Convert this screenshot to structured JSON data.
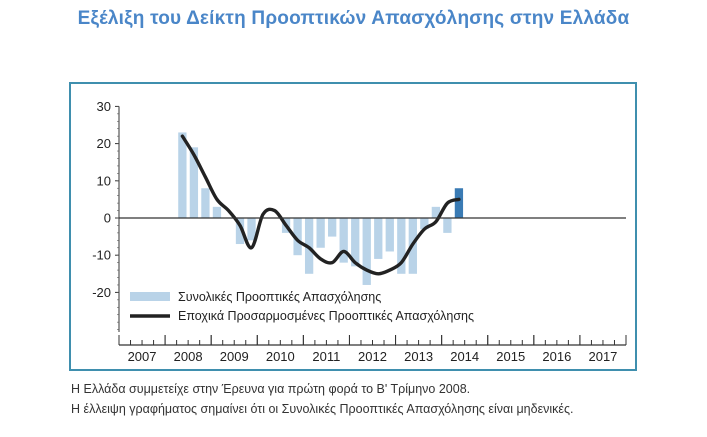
{
  "title": "Εξέλιξη του Δείκτη Προοπτικών Απασχόλησης στην Ελλάδα",
  "footnotes": [
    "Η Ελλάδα συμμετείχε στην Έρευνα για πρώτη φορά το Β' Τρίμηνο 2008.",
    "Η έλλειψη γραφήματος σημαίνει ότι οι Συνολικές Προοπτικές Απασχόλησης είναι μηδενικές."
  ],
  "colors": {
    "title": "#4a86c8",
    "frame": "#3f8fae",
    "bar": "#b9d3e8",
    "bar_highlight": "#3a7bb4",
    "line": "#222222"
  },
  "chart_data": {
    "type": "bar",
    "title": "",
    "xlabel": "",
    "ylabel": "",
    "ylim": [
      -30,
      30
    ],
    "yticks": [
      30,
      20,
      10,
      0,
      -10,
      -20
    ],
    "years": [
      "2007",
      "2008",
      "2009",
      "2010",
      "2011",
      "2012",
      "2013",
      "2014",
      "2015",
      "2016",
      "2017"
    ],
    "legend": {
      "placement": "lower-left",
      "entries": [
        "Συνολικές Προοπτικές Απασχόλησης",
        "Εποχικά Προσαρμοσμένες Προοπτικές Απασχόλησης"
      ]
    },
    "series": [
      {
        "name": "Συνολικές Προοπτικές Απασχόλησης",
        "type": "bar",
        "x": [
          "2008 Q2",
          "2008 Q3",
          "2008 Q4",
          "2009 Q1",
          "2009 Q2",
          "2009 Q3",
          "2009 Q4",
          "2010 Q1",
          "2010 Q2",
          "2010 Q3",
          "2010 Q4",
          "2011 Q1",
          "2011 Q2",
          "2011 Q3",
          "2011 Q4",
          "2012 Q1",
          "2012 Q2",
          "2012 Q3",
          "2012 Q4",
          "2013 Q1",
          "2013 Q2",
          "2013 Q3",
          "2013 Q4",
          "2014 Q1",
          "2014 Q2"
        ],
        "values": [
          23,
          19,
          8,
          3,
          0,
          -7,
          -6,
          0,
          0,
          -4,
          -10,
          -15,
          -8,
          -5,
          -12,
          -13,
          -18,
          -11,
          -9,
          -15,
          -15,
          -3,
          3,
          -4,
          8
        ]
      },
      {
        "name": "Εποχικά Προσαρμοσμένες Προοπτικές Απασχόλησης",
        "type": "line",
        "x": [
          "2008 Q2",
          "2008 Q3",
          "2008 Q4",
          "2009 Q1",
          "2009 Q2",
          "2009 Q3",
          "2009 Q4",
          "2010 Q1",
          "2010 Q2",
          "2010 Q3",
          "2010 Q4",
          "2011 Q1",
          "2011 Q2",
          "2011 Q3",
          "2011 Q4",
          "2012 Q1",
          "2012 Q2",
          "2012 Q3",
          "2012 Q4",
          "2013 Q1",
          "2013 Q2",
          "2013 Q3",
          "2013 Q4",
          "2014 Q1",
          "2014 Q2"
        ],
        "values": [
          22,
          17,
          11,
          5,
          2,
          -2,
          -8,
          1,
          2,
          -2,
          -6,
          -8,
          -11,
          -12,
          -9,
          -12,
          -14,
          -15,
          -14,
          -12,
          -7,
          -3,
          -1,
          4,
          5
        ]
      }
    ]
  }
}
